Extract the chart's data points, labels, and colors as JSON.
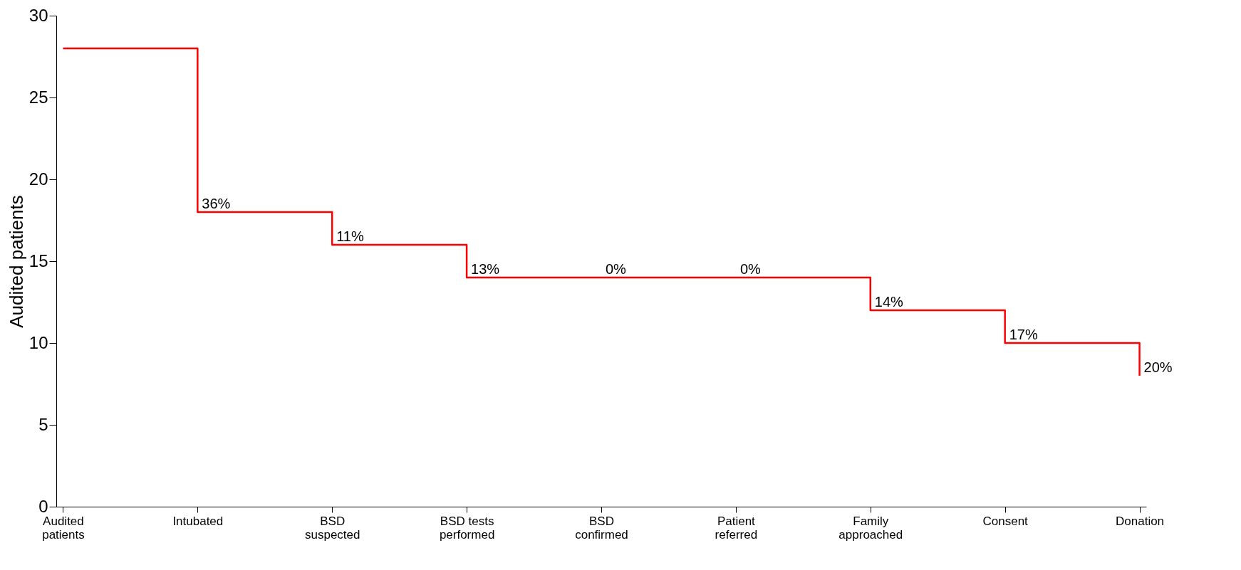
{
  "chart_data": {
    "type": "step",
    "ylabel": "Audited patients",
    "categories": [
      "Audited patients",
      "Intubated",
      "BSD suspected",
      "BSD tests performed",
      "BSD confirmed",
      "Patient referred",
      "Family approached",
      "Consent",
      "Donation"
    ],
    "values": [
      28,
      18,
      16,
      14,
      14,
      14,
      12,
      10,
      8
    ],
    "annotations": [
      {
        "text": "36%",
        "x": "Intubated",
        "y": 18
      },
      {
        "text": "11%",
        "x": "BSD suspected",
        "y": 16
      },
      {
        "text": "13%",
        "x": "BSD tests performed",
        "y": 14
      },
      {
        "text": "0%",
        "x": "BSD confirmed",
        "y": 14
      },
      {
        "text": "0%",
        "x": "Patient referred",
        "y": 14
      },
      {
        "text": "14%",
        "x": "Family approached",
        "y": 12
      },
      {
        "text": "17%",
        "x": "Consent",
        "y": 10
      },
      {
        "text": "20%",
        "x": "Donation",
        "y": 8
      }
    ],
    "color": "#ff0000",
    "ylim": [
      0,
      30
    ],
    "yticks": [
      0,
      5,
      10,
      15,
      20,
      25,
      30
    ]
  }
}
